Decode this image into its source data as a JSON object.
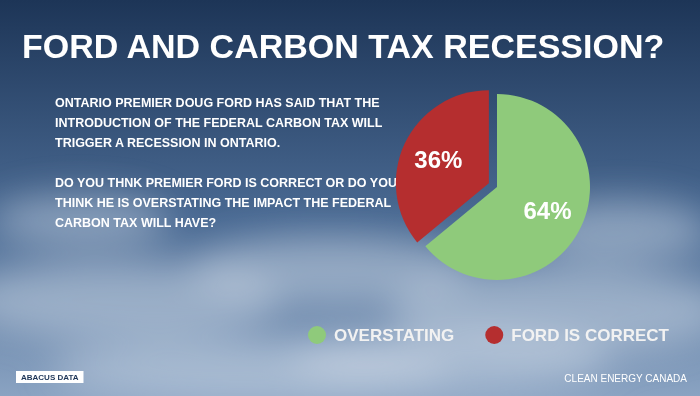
{
  "chart_data": {
    "type": "pie",
    "title": "FORD AND CARBON TAX RECESSION?",
    "annotations": [
      "ONTARIO PREMIER DOUG FORD HAS SAID THAT THE INTRODUCTION OF THE FEDERAL CARBON TAX WILL TRIGGER A RECESSION IN ONTARIO.",
      "DO YOU THNK PREMIER FORD IS CORRECT OR DO YOU THINK HE IS OVERSTATING THE IMPACT THE FEDERAL CARBON TAX WILL HAVE?"
    ],
    "credits": [
      "ABACUS DATA",
      "CLEAN ENERGY CANADA"
    ],
    "categories": [
      "OVERSTATING",
      "FORD IS CORRECT"
    ],
    "values": [
      64,
      36
    ],
    "value_labels": [
      "64%",
      "36%"
    ],
    "colors": [
      "#8fca7b",
      "#b52e2f"
    ],
    "data_labels": true,
    "legend": "bottom"
  }
}
